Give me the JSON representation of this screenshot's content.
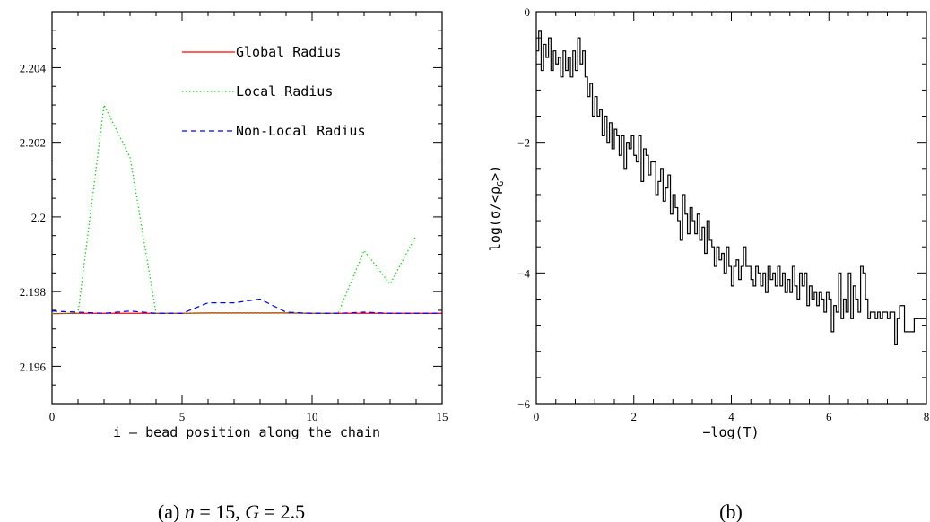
{
  "chart_data": [
    {
      "type": "line",
      "caption": "(a) n = 15, G = 2.5",
      "caption_parts": {
        "prefix": "(a) ",
        "n_sym": "n",
        "n_eq": " = 15, ",
        "g_sym": "G",
        "g_eq": " = 2.5"
      },
      "xlabel": "i – bead position along the chain",
      "ylabel": "",
      "xlim": [
        0,
        15
      ],
      "ylim": [
        2.195,
        2.2055
      ],
      "xticks": [
        0,
        5,
        10,
        15
      ],
      "xtick_labels": [
        "0",
        "5",
        "10",
        "15"
      ],
      "yticks": [
        2.196,
        2.198,
        2.2,
        2.202,
        2.204
      ],
      "ytick_labels": [
        "2.196",
        "2.198",
        "2.2",
        "2.202",
        "2.204"
      ],
      "legend_placement": "top-right",
      "series": [
        {
          "name": "Global Radius",
          "color": "#ff0000",
          "style": "solid",
          "x": [
            0,
            1,
            2,
            3,
            4,
            5,
            6,
            7,
            8,
            9,
            10,
            11,
            12,
            13,
            14,
            15
          ],
          "y": [
            2.19741,
            2.19742,
            2.19742,
            2.19742,
            2.19742,
            2.19742,
            2.19743,
            2.19743,
            2.19743,
            2.19743,
            2.19742,
            2.19742,
            2.19742,
            2.19742,
            2.19742,
            2.19742
          ]
        },
        {
          "name": "Local Radius",
          "color": "#00dd00",
          "style": "dotted",
          "x": [
            0,
            1,
            2,
            3,
            4,
            5,
            6,
            7,
            8,
            9,
            10,
            11,
            12,
            13,
            14
          ],
          "y": [
            2.19742,
            2.19742,
            2.203,
            2.2016,
            2.19742,
            2.19742,
            2.19742,
            2.19742,
            2.19742,
            2.19742,
            2.19742,
            2.19742,
            2.1991,
            2.1982,
            2.1995
          ]
        },
        {
          "name": "Non-Local Radius",
          "color": "#0000ff",
          "style": "dashed",
          "x": [
            0,
            1,
            2,
            3,
            4,
            5,
            6,
            7,
            8,
            9,
            10,
            11,
            12,
            13,
            14,
            15
          ],
          "y": [
            2.19748,
            2.19745,
            2.19742,
            2.19748,
            2.19742,
            2.19742,
            2.1977,
            2.1977,
            2.1978,
            2.19745,
            2.19742,
            2.19742,
            2.19745,
            2.19742,
            2.19742,
            2.19742
          ]
        }
      ]
    },
    {
      "type": "line",
      "caption": "(b)",
      "xlabel": "−log(T)",
      "ylabel": "log(σ/<ρ_G>)",
      "ylabel_parts": {
        "pre": "log(σ/<ρ",
        "sub": "G",
        "post": ">)"
      },
      "xlim": [
        0,
        8
      ],
      "ylim": [
        -6,
        0
      ],
      "xticks": [
        0,
        2,
        4,
        6,
        8
      ],
      "xtick_labels": [
        "0",
        "2",
        "4",
        "6",
        "8"
      ],
      "yticks": [
        -6,
        -4,
        -2,
        0
      ],
      "ytick_labels": [
        "−6",
        "−4",
        "−2",
        "0"
      ],
      "series": [
        {
          "color": "#000000",
          "style": "solid",
          "x": [
            0,
            0.05,
            0.1,
            0.15,
            0.2,
            0.25,
            0.3,
            0.35,
            0.4,
            0.45,
            0.5,
            0.55,
            0.6,
            0.65,
            0.7,
            0.75,
            0.8,
            0.85,
            0.9,
            0.95,
            1.0,
            1.05,
            1.1,
            1.15,
            1.2,
            1.25,
            1.3,
            1.35,
            1.4,
            1.45,
            1.5,
            1.55,
            1.6,
            1.65,
            1.7,
            1.75,
            1.8,
            1.85,
            1.9,
            1.95,
            2.0,
            2.05,
            2.1,
            2.15,
            2.2,
            2.25,
            2.3,
            2.35,
            2.4,
            2.45,
            2.5,
            2.55,
            2.6,
            2.65,
            2.7,
            2.75,
            2.8,
            2.85,
            2.9,
            2.95,
            3.0,
            3.05,
            3.1,
            3.15,
            3.2,
            3.25,
            3.3,
            3.35,
            3.4,
            3.45,
            3.5,
            3.55,
            3.6,
            3.65,
            3.7,
            3.75,
            3.8,
            3.85,
            3.9,
            3.95,
            4.0,
            4.05,
            4.1,
            4.15,
            4.2,
            4.25,
            4.3,
            4.35,
            4.4,
            4.45,
            4.5,
            4.55,
            4.6,
            4.65,
            4.7,
            4.75,
            4.8,
            4.85,
            4.9,
            4.95,
            5.0,
            5.05,
            5.1,
            5.15,
            5.2,
            5.25,
            5.3,
            5.35,
            5.4,
            5.45,
            5.5,
            5.55,
            5.6,
            5.65,
            5.7,
            5.75,
            5.8,
            5.85,
            5.9,
            5.95,
            6.0,
            6.05,
            6.1,
            6.15,
            6.2,
            6.25,
            6.3,
            6.35,
            6.4,
            6.45,
            6.5,
            6.55,
            6.6,
            6.65,
            6.7,
            6.75,
            6.8,
            6.85,
            6.9,
            6.95,
            7.0,
            7.05,
            7.1,
            7.15,
            7.2,
            7.25,
            7.3,
            7.35,
            7.4,
            7.45,
            7.5,
            7.55,
            7.6,
            7.65,
            7.7,
            7.75,
            7.8,
            7.85,
            7.9,
            7.95,
            8.0
          ],
          "y": [
            -0.6,
            -0.3,
            -0.9,
            -0.5,
            -0.7,
            -0.4,
            -0.9,
            -0.6,
            -0.8,
            -0.7,
            -1.0,
            -0.6,
            -0.9,
            -0.7,
            -1.0,
            -0.6,
            -0.9,
            -0.4,
            -0.8,
            -0.6,
            -1.0,
            -1.3,
            -1.1,
            -1.6,
            -1.3,
            -1.6,
            -1.5,
            -1.9,
            -1.6,
            -2.0,
            -1.7,
            -2.1,
            -1.8,
            -1.9,
            -2.2,
            -1.9,
            -2.4,
            -2.0,
            -2.1,
            -1.9,
            -2.2,
            -2.3,
            -1.9,
            -2.6,
            -2.1,
            -2.2,
            -2.5,
            -2.3,
            -2.3,
            -2.8,
            -2.6,
            -2.4,
            -2.9,
            -2.7,
            -2.5,
            -3.1,
            -2.8,
            -3.0,
            -3.2,
            -3.5,
            -2.8,
            -3.1,
            -3.4,
            -3.0,
            -3.2,
            -3.4,
            -3.1,
            -3.5,
            -3.3,
            -3.7,
            -3.2,
            -3.5,
            -3.6,
            -3.9,
            -3.6,
            -3.8,
            -3.7,
            -4.0,
            -3.6,
            -3.9,
            -4.2,
            -3.9,
            -3.8,
            -4.1,
            -3.9,
            -3.6,
            -3.9,
            -3.9,
            -4.1,
            -4.2,
            -3.9,
            -4.0,
            -4.2,
            -4.0,
            -4.3,
            -3.9,
            -4.1,
            -4.0,
            -4.2,
            -3.9,
            -4.2,
            -4.0,
            -4.3,
            -4.1,
            -4.3,
            -3.9,
            -4.2,
            -4.4,
            -4.0,
            -4.2,
            -4.0,
            -4.5,
            -4.2,
            -4.4,
            -4.3,
            -4.5,
            -4.3,
            -4.4,
            -4.6,
            -4.3,
            -4.4,
            -4.9,
            -4.5,
            -4.6,
            -4.0,
            -4.7,
            -4.4,
            -4.6,
            -4.0,
            -4.7,
            -4.2,
            -4.4,
            -4.6,
            -3.9,
            -4.0,
            -4.4,
            -4.7,
            -4.6,
            -4.6,
            -4.7,
            -4.6,
            -4.7,
            -4.6,
            -4.6,
            -4.7,
            -4.6,
            -4.6,
            -5.1,
            -4.7,
            -4.5,
            -4.5,
            -4.9,
            -4.9,
            -4.9,
            -4.9,
            -4.7,
            -4.7,
            -4.7,
            -4.7,
            -4.7,
            -4.7
          ]
        }
      ]
    }
  ]
}
